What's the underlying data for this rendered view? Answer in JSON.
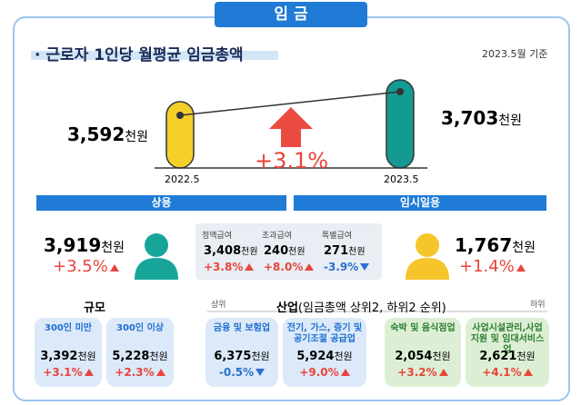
{
  "header": {
    "title": "임 금"
  },
  "section": {
    "title": "근로자 1인당 월평균 임금총액",
    "note": "2023.5월 기준"
  },
  "unit": "천원",
  "comparison": {
    "before": {
      "period": "2022.5",
      "value": "3,592"
    },
    "after": {
      "period": "2023.5",
      "value": "3,703"
    },
    "change": "+3.1%"
  },
  "regular": {
    "label": "상용",
    "value": "3,919",
    "change": "+3.5%",
    "items": [
      {
        "label": "정액급여",
        "value": "3,408",
        "change": "+3.8%"
      },
      {
        "label": "초과급여",
        "value": "240",
        "change": "+8.0%"
      },
      {
        "label": "특별급여",
        "value": "271",
        "change": "-3.9%"
      }
    ]
  },
  "temporary": {
    "label": "임시일용",
    "value": "1,767",
    "change": "+1.4%"
  },
  "size": {
    "title": "규모",
    "items": [
      {
        "label": "300인 미만",
        "value": "3,392",
        "change": "+3.1%"
      },
      {
        "label": "300인 이상",
        "value": "5,228",
        "change": "+2.3%"
      }
    ]
  },
  "industry": {
    "title": "산업",
    "subtitle": "(임금총액 상위2, 하위2 순위)",
    "top_label": "상위",
    "bottom_label": "하위",
    "items": [
      {
        "label": "금융 및 보험업",
        "value": "6,375",
        "change": "-0.5%"
      },
      {
        "label": "전기, 가스, 증기 및 공기조절 공급업",
        "value": "5,924",
        "change": "+9.0%"
      },
      {
        "label": "숙박 및 음식점업",
        "value": "2,054",
        "change": "+3.2%"
      },
      {
        "label": "사업시설관리,사업지원 및 임대서비스업",
        "value": "2,621",
        "change": "+4.1%"
      }
    ]
  }
}
